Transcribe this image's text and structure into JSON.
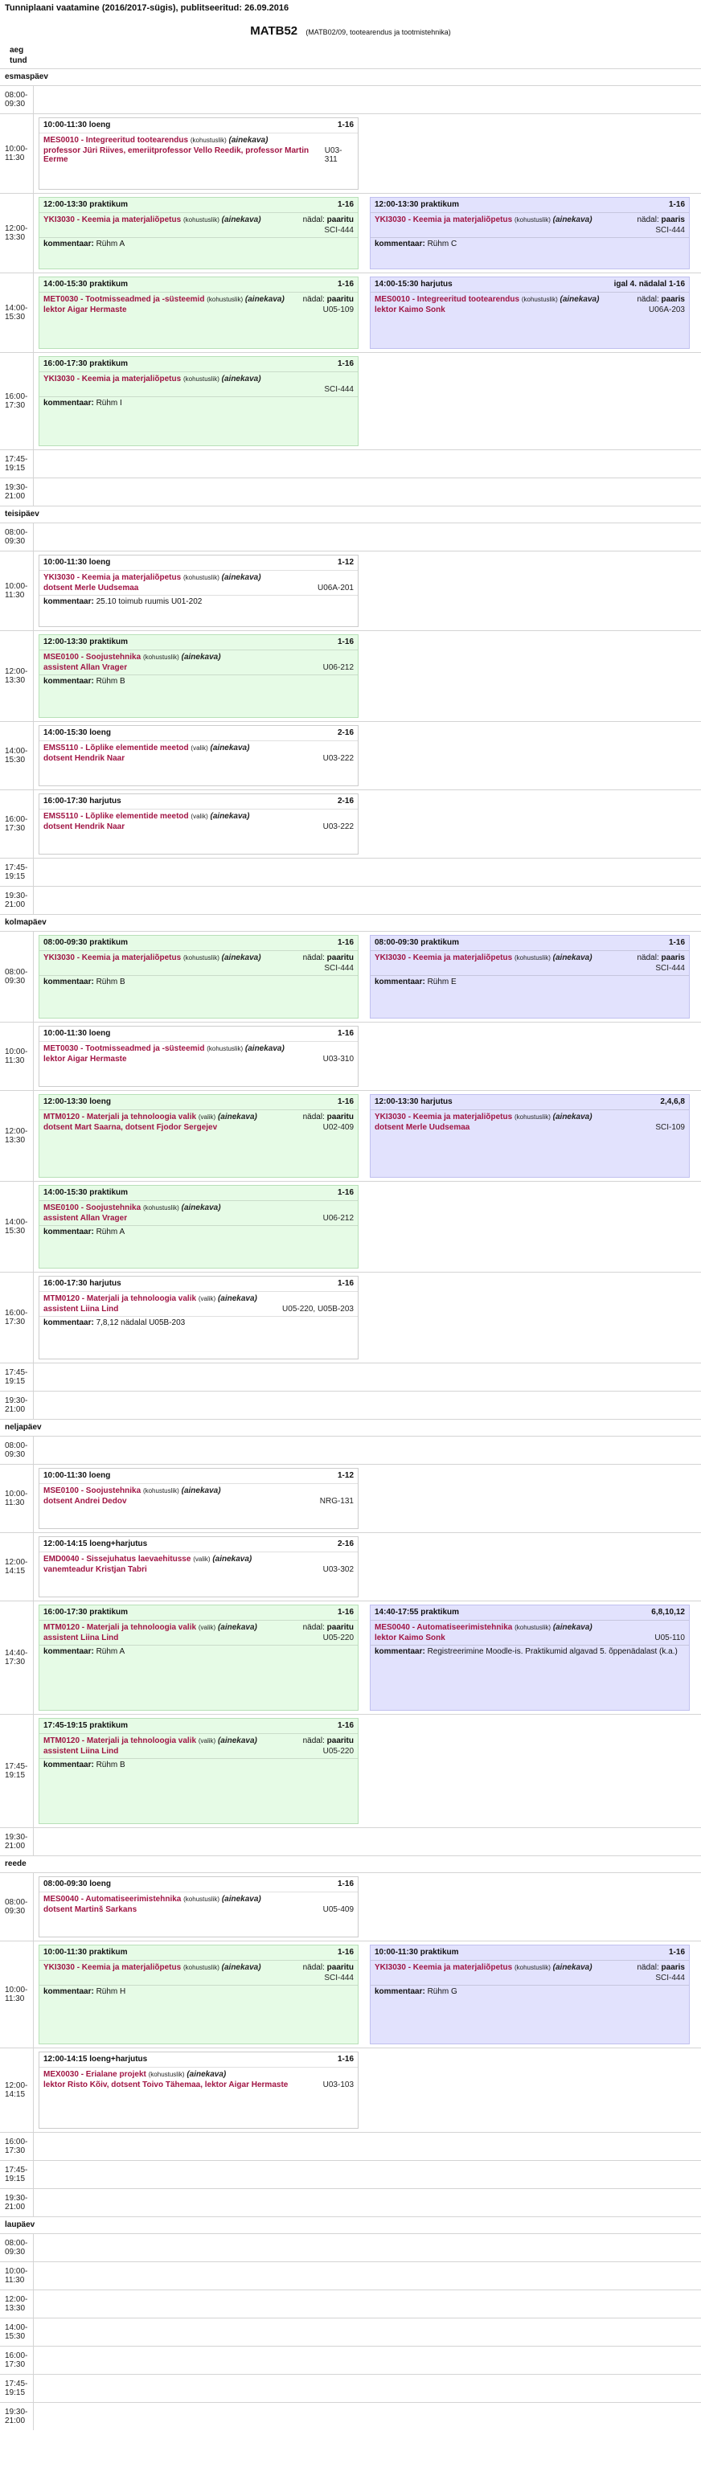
{
  "header": {
    "published": "Tunniplaani vaatamine (2016/2017-sügis), publitseeritud: 26.09.2016",
    "group_code": "MATB52",
    "group_desc": "(MATB02/09, tootearendus ja tootmistehnika)",
    "col_day": "aeg",
    "col_hour": "tund"
  },
  "labels": {
    "comment": "kommentaar:",
    "week": "nädal:",
    "aine": "(ainekava)"
  },
  "days": [
    {
      "name": "esmaspäev",
      "slots": [
        {
          "time": "08:00-09:30",
          "h": 34,
          "cells": []
        },
        {
          "time": "10:00-11:30",
          "h": 98,
          "cells": [
            {
              "color": "w",
              "time": "10:00-11:30",
              "type": "loeng",
              "weeks": "1-16",
              "course": "MES0010 - Integreeritud tootearendus",
              "kind": "(kohustuslik)",
              "aine": "(ainekava)",
              "week_val": "",
              "people": "professor Jüri Riives,  emeriitprofessor Vello Reedik, professor Martin Eerme",
              "room": "U03-311",
              "comment": ""
            }
          ]
        },
        {
          "time": "12:00-13:30",
          "h": 98,
          "cells": [
            {
              "color": "g",
              "time": "12:00-13:30",
              "type": "praktikum",
              "weeks": "1-16",
              "course": "YKI3030 - Keemia ja materjaliõpetus",
              "kind": "(kohustuslik)",
              "aine": "(ainekava)",
              "week_val": "paaritu",
              "people": "",
              "room": "SCI-444",
              "comment": "Rühm A"
            },
            {
              "color": "p",
              "time": "12:00-13:30",
              "type": "praktikum",
              "weeks": "1-16",
              "course": "YKI3030 - Keemia ja materjaliõpetus",
              "kind": "(kohustuslik)",
              "aine": "(ainekava)",
              "week_val": "paaris",
              "people": "",
              "room": "SCI-444",
              "comment": "Rühm C"
            }
          ]
        },
        {
          "time": "14:00-15:30",
          "h": 98,
          "cells": [
            {
              "color": "g",
              "time": "14:00-15:30",
              "type": "praktikum",
              "weeks": "1-16",
              "course": "MET0030 - Tootmisseadmed ja -süsteemid",
              "kind": "(kohustuslik)",
              "aine": "(ainekava)",
              "week_val": "paaritu",
              "people": "lektor Aigar Hermaste",
              "room": "U05-109",
              "comment": ""
            },
            {
              "color": "p",
              "time": "14:00-15:30",
              "type": "harjutus",
              "weeks": "igal 4. nädalal 1-16",
              "course": "MES0010 - Integreeritud tootearendus",
              "kind": "(kohustuslik)",
              "aine": "(ainekava)",
              "week_val": "paaris",
              "people": "lektor Kaimo Sonk",
              "room": "U06A-203",
              "comment": ""
            }
          ]
        },
        {
          "time": "16:00-17:30",
          "h": 120,
          "cells": [
            {
              "color": "g",
              "time": "16:00-17:30",
              "type": "praktikum",
              "weeks": "1-16",
              "course": "YKI3030 - Keemia ja materjaliõpetus",
              "kind": "(kohustuslik)",
              "aine": "(ainekava)",
              "week_val": "",
              "people": "",
              "room": "SCI-444",
              "comment": "Rühm I"
            }
          ]
        },
        {
          "time": "17:45-19:15",
          "h": 34,
          "cells": []
        },
        {
          "time": "19:30-21:00",
          "h": 34,
          "cells": []
        }
      ]
    },
    {
      "name": "teisipäev",
      "slots": [
        {
          "time": "08:00-09:30",
          "h": 34,
          "cells": []
        },
        {
          "time": "10:00-11:30",
          "h": 98,
          "cells": [
            {
              "color": "w",
              "time": "10:00-11:30",
              "type": "loeng",
              "weeks": "1-12",
              "course": "YKI3030 - Keemia ja materjaliõpetus",
              "kind": "(kohustuslik)",
              "aine": "(ainekava)",
              "week_val": "",
              "people": "dotsent Merle Uudsemaa",
              "room": "U06A-201",
              "comment": "25.10 toimub ruumis U01-202"
            }
          ]
        },
        {
          "time": "12:00-13:30",
          "h": 112,
          "cells": [
            {
              "color": "g",
              "time": "12:00-13:30",
              "type": "praktikum",
              "weeks": "1-16",
              "course": "MSE0100 - Soojustehnika",
              "kind": "(kohustuslik)",
              "aine": "(ainekava)",
              "week_val": "",
              "people": "assistent Allan Vrager",
              "room": "U06-212",
              "comment": "Rühm B"
            }
          ]
        },
        {
          "time": "14:00-15:30",
          "h": 84,
          "cells": [
            {
              "color": "w",
              "time": "14:00-15:30",
              "type": "loeng",
              "weeks": "2-16",
              "course": "EMS5110 - Lõplike elementide meetod",
              "kind": "(valik)",
              "aine": "(ainekava)",
              "week_val": "",
              "people": "dotsent Hendrik Naar",
              "room": "U03-222",
              "comment": ""
            }
          ]
        },
        {
          "time": "16:00-17:30",
          "h": 84,
          "cells": [
            {
              "color": "w",
              "time": "16:00-17:30",
              "type": "harjutus",
              "weeks": "2-16",
              "course": "EMS5110 - Lõplike elementide meetod",
              "kind": "(valik)",
              "aine": "(ainekava)",
              "week_val": "",
              "people": "dotsent Hendrik Naar",
              "room": "U03-222",
              "comment": ""
            }
          ]
        },
        {
          "time": "17:45-19:15",
          "h": 34,
          "cells": []
        },
        {
          "time": "19:30-21:00",
          "h": 34,
          "cells": []
        }
      ]
    },
    {
      "name": "kolmapäev",
      "slots": [
        {
          "time": "08:00-09:30",
          "h": 112,
          "cells": [
            {
              "color": "g",
              "time": "08:00-09:30",
              "type": "praktikum",
              "weeks": "1-16",
              "course": "YKI3030 - Keemia ja materjaliõpetus",
              "kind": "(kohustuslik)",
              "aine": "(ainekava)",
              "week_val": "paaritu",
              "people": "",
              "room": "SCI-444",
              "comment": "Rühm B"
            },
            {
              "color": "p",
              "time": "08:00-09:30",
              "type": "praktikum",
              "weeks": "1-16",
              "course": "YKI3030 - Keemia ja materjaliõpetus",
              "kind": "(kohustuslik)",
              "aine": "(ainekava)",
              "week_val": "paaris",
              "people": "",
              "room": "SCI-444",
              "comment": "Rühm E"
            }
          ]
        },
        {
          "time": "10:00-11:30",
          "h": 84,
          "cells": [
            {
              "color": "w",
              "time": "10:00-11:30",
              "type": "loeng",
              "weeks": "1-16",
              "course": "MET0030 - Tootmisseadmed ja -süsteemid",
              "kind": "(kohustuslik)",
              "aine": "(ainekava)",
              "week_val": "",
              "people": "lektor Aigar Hermaste",
              "room": "U03-310",
              "comment": ""
            }
          ]
        },
        {
          "time": "12:00-13:30",
          "h": 112,
          "cells": [
            {
              "color": "g",
              "time": "12:00-13:30",
              "type": "loeng",
              "weeks": "1-16",
              "course": "MTM0120 - Materjali ja tehnoloogia valik",
              "kind": "(valik)",
              "aine": "(ainekava)",
              "week_val": "paaritu",
              "people": "dotsent Mart Saarna,  dotsent Fjodor Sergejev",
              "room": "U02-409",
              "comment": ""
            },
            {
              "color": "p",
              "time": "12:00-13:30",
              "type": "harjutus",
              "weeks": "2,4,6,8",
              "course": "YKI3030 - Keemia ja materjaliõpetus",
              "kind": "(kohustuslik)",
              "aine": "(ainekava)",
              "week_val": "",
              "people": "dotsent Merle Uudsemaa",
              "room": "SCI-109",
              "comment": ""
            }
          ]
        },
        {
          "time": "14:00-15:30",
          "h": 112,
          "cells": [
            {
              "color": "g",
              "time": "14:00-15:30",
              "type": "praktikum",
              "weeks": "1-16",
              "course": "MSE0100 - Soojustehnika",
              "kind": "(kohustuslik)",
              "aine": "(ainekava)",
              "week_val": "",
              "people": "assistent Allan Vrager",
              "room": "U06-212",
              "comment": "Rühm A"
            }
          ]
        },
        {
          "time": "16:00-17:30",
          "h": 112,
          "cells": [
            {
              "color": "w",
              "time": "16:00-17:30",
              "type": "harjutus",
              "weeks": "1-16",
              "course": "MTM0120 - Materjali ja tehnoloogia valik",
              "kind": "(valik)",
              "aine": "(ainekava)",
              "week_val": "",
              "people": "assistent Liina Lind",
              "room": "U05-220,  U05B-203",
              "comment": "7,8,12 nädalal U05B-203"
            }
          ]
        },
        {
          "time": "17:45-19:15",
          "h": 34,
          "cells": []
        },
        {
          "time": "19:30-21:00",
          "h": 34,
          "cells": []
        }
      ]
    },
    {
      "name": "neljapäev",
      "slots": [
        {
          "time": "08:00-09:30",
          "h": 34,
          "cells": []
        },
        {
          "time": "10:00-11:30",
          "h": 84,
          "cells": [
            {
              "color": "w",
              "time": "10:00-11:30",
              "type": "loeng",
              "weeks": "1-12",
              "course": "MSE0100 - Soojustehnika",
              "kind": "(kohustuslik)",
              "aine": "(ainekava)",
              "week_val": "",
              "people": "dotsent Andrei Dedov",
              "room": "NRG-131",
              "comment": ""
            }
          ]
        },
        {
          "time": "12:00-14:15",
          "h": 84,
          "cells": [
            {
              "color": "w",
              "time": "12:00-14:15",
              "type": "loeng+harjutus",
              "weeks": "2-16",
              "course": "EMD0040 - Sissejuhatus laevaehitusse",
              "kind": "(valik)",
              "aine": "(ainekava)",
              "week_val": "",
              "people": "vanemteadur Kristjan Tabri",
              "room": "U03-302",
              "comment": ""
            }
          ]
        },
        {
          "time": "14:40-17:30",
          "h": 140,
          "cells": [
            {
              "color": "g",
              "time": "16:00-17:30",
              "type": "praktikum",
              "weeks": "1-16",
              "course": "MTM0120 - Materjali ja tehnoloogia valik",
              "kind": "(valik)",
              "aine": "(ainekava)",
              "week_val": "paaritu",
              "people": "assistent Liina Lind",
              "room": "U05-220",
              "comment": "Rühm A"
            },
            {
              "color": "p",
              "time": "14:40-17:55",
              "type": "praktikum",
              "weeks": "6,8,10,12",
              "course": "MES0040 - Automatiseerimistehnika",
              "kind": "(kohustuslik)",
              "aine": "(ainekava)",
              "week_val": "",
              "people": "lektor Kaimo Sonk",
              "room": "U05-110",
              "comment": "Registreerimine Moodle-is. Praktikumid algavad 5. õppenädalast (k.a.)"
            }
          ]
        },
        {
          "time": "17:45-19:15",
          "h": 140,
          "cells": [
            {
              "color": "g",
              "time": "17:45-19:15",
              "type": "praktikum",
              "weeks": "1-16",
              "course": "MTM0120 - Materjali ja tehnoloogia valik",
              "kind": "(valik)",
              "aine": "(ainekava)",
              "week_val": "paaritu",
              "people": "assistent Liina Lind",
              "room": "U05-220",
              "comment": "Rühm B"
            }
          ]
        },
        {
          "time": "19:30-21:00",
          "h": 34,
          "cells": []
        }
      ]
    },
    {
      "name": "reede",
      "slots": [
        {
          "time": "08:00-09:30",
          "h": 84,
          "cells": [
            {
              "color": "w",
              "time": "08:00-09:30",
              "type": "loeng",
              "weeks": "1-16",
              "course": "MES0040 - Automatiseerimistehnika",
              "kind": "(kohustuslik)",
              "aine": "(ainekava)",
              "week_val": "",
              "people": "dotsent Martinš Sarkans",
              "room": "U05-409",
              "comment": ""
            }
          ]
        },
        {
          "time": "10:00-11:30",
          "h": 132,
          "cells": [
            {
              "color": "g",
              "time": "10:00-11:30",
              "type": "praktikum",
              "weeks": "1-16",
              "course": "YKI3030 - Keemia ja materjaliõpetus",
              "kind": "(kohustuslik)",
              "aine": "(ainekava)",
              "week_val": "paaritu",
              "people": "",
              "room": "SCI-444",
              "comment": "Rühm H"
            },
            {
              "color": "p",
              "time": "10:00-11:30",
              "type": "praktikum",
              "weeks": "1-16",
              "course": "YKI3030 - Keemia ja materjaliõpetus",
              "kind": "(kohustuslik)",
              "aine": "(ainekava)",
              "week_val": "paaris",
              "people": "",
              "room": "SCI-444",
              "comment": "Rühm G"
            }
          ]
        },
        {
          "time": "12:00-14:15",
          "h": 104,
          "cells": [
            {
              "color": "w",
              "time": "12:00-14:15",
              "type": "loeng+harjutus",
              "weeks": "1-16",
              "course": "MEX0030 - Erialane projekt",
              "kind": "(kohustuslik)",
              "aine": "(ainekava)",
              "week_val": "",
              "people": "lektor Risto Kõiv,  dotsent Toivo Tähemaa, lektor Aigar Hermaste",
              "room": "U03-103",
              "comment": ""
            }
          ]
        },
        {
          "time": "16:00-17:30",
          "h": 34,
          "cells": []
        },
        {
          "time": "17:45-19:15",
          "h": 34,
          "cells": []
        },
        {
          "time": "19:30-21:00",
          "h": 34,
          "cells": []
        }
      ]
    },
    {
      "name": "laupäev",
      "slots": [
        {
          "time": "08:00-09:30",
          "h": 34,
          "cells": []
        },
        {
          "time": "10:00-11:30",
          "h": 34,
          "cells": []
        },
        {
          "time": "12:00-13:30",
          "h": 34,
          "cells": []
        },
        {
          "time": "14:00-15:30",
          "h": 34,
          "cells": []
        },
        {
          "time": "16:00-17:30",
          "h": 34,
          "cells": []
        },
        {
          "time": "17:45-19:15",
          "h": 34,
          "cells": []
        },
        {
          "time": "19:30-21:00",
          "h": 34,
          "cells": []
        }
      ]
    }
  ]
}
